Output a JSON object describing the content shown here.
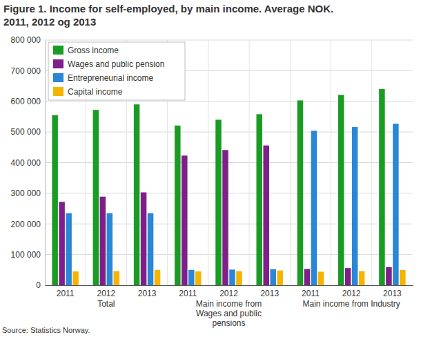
{
  "chart_data": {
    "type": "bar",
    "title": [
      "Figure 1. Income for self-employed, by main income. Average NOK.",
      "2011, 2012 og 2013"
    ],
    "categories": [
      "2011",
      "2012",
      "2013",
      "2011",
      "2012",
      "2013",
      "2011",
      "2012",
      "2013"
    ],
    "category_groups": [
      [
        "Total"
      ],
      [
        "Main income from",
        "Wages and public",
        "pensions"
      ],
      [
        "Main income from Industry"
      ]
    ],
    "series": [
      {
        "name": "Gross income",
        "color": "#1a9b24",
        "values": [
          555000,
          572000,
          590000,
          521000,
          540000,
          558000,
          603000,
          621000,
          640000
        ]
      },
      {
        "name": "Wages and public pension",
        "color": "#7e1f8a",
        "values": [
          272000,
          289000,
          303000,
          423000,
          441000,
          456000,
          53000,
          56000,
          59000
        ]
      },
      {
        "name": "Entrepreneurial income",
        "color": "#2a86d6",
        "values": [
          235000,
          235000,
          235000,
          50000,
          51000,
          52000,
          504000,
          516000,
          527000
        ]
      },
      {
        "name": "Capital income",
        "color": "#f5b400",
        "values": [
          45000,
          46000,
          50000,
          45000,
          46000,
          48000,
          44000,
          46000,
          50000
        ]
      }
    ],
    "ylim": [
      0,
      800000
    ],
    "yticks": [
      0,
      {
        "value": 100000,
        "label": "100 000"
      },
      {
        "value": 200000,
        "label": "200 000"
      },
      {
        "value": 300000,
        "label": "300 000"
      },
      {
        "value": 400000,
        "label": "400 000"
      },
      {
        "value": 500000,
        "label": "500 000"
      },
      {
        "value": 600000,
        "label": "600 000"
      },
      {
        "value": 700000,
        "label": "700 000"
      },
      {
        "value": 800000,
        "label": "800 000"
      }
    ],
    "grid": true,
    "legend": "upper left",
    "source": "Source: Statistics Norway."
  }
}
